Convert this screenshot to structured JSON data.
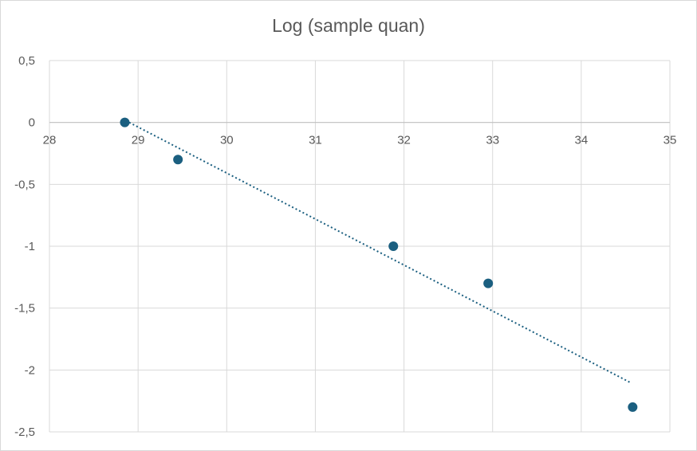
{
  "chart_data": {
    "type": "scatter",
    "title": "Log (sample quan)",
    "xlabel": "",
    "ylabel": "",
    "xlim": [
      28,
      35
    ],
    "ylim": [
      -2.5,
      0.5
    ],
    "grid": true,
    "x_ticks": [
      "28",
      "29",
      "30",
      "31",
      "32",
      "33",
      "34",
      "35"
    ],
    "y_ticks": [
      "0,5",
      "0",
      "-0,5",
      "-1",
      "-1,5",
      "-2",
      "-2,5"
    ],
    "series": [
      {
        "x": [
          28.85,
          29.45,
          31.88,
          32.95,
          34.58
        ],
        "y": [
          0,
          -0.3,
          -1.0,
          -1.3,
          -2.3
        ]
      }
    ],
    "trendline": {
      "type": "linear",
      "style": "dotted",
      "x": [
        28.9,
        34.55
      ],
      "y": [
        0.0,
        -2.1
      ]
    },
    "colors": {
      "marker": "#1b5f80",
      "trendline": "#1b5f80",
      "grid": "#d9d9d9",
      "axis": "#bfbfbf"
    }
  }
}
